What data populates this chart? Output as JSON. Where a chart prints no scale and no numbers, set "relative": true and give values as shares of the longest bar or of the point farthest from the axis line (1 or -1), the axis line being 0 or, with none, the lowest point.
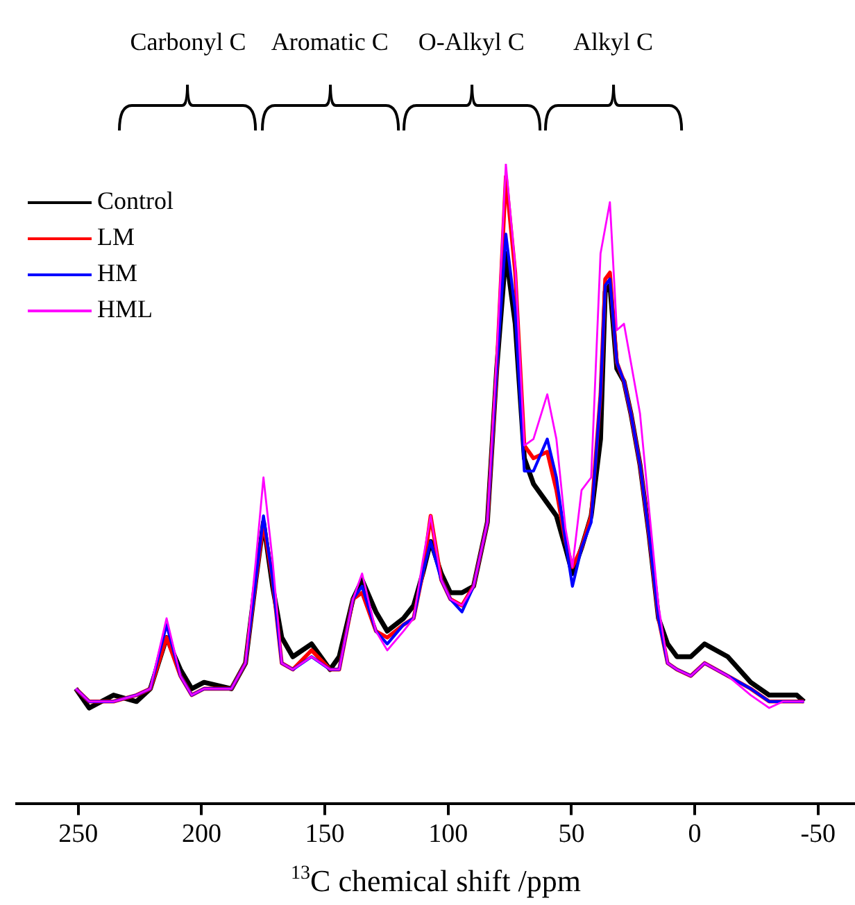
{
  "chart_data": {
    "type": "line",
    "xlabel": "$^{13}$C chemical shift /ppm",
    "relative": true,
    "xlim": [
      275,
      -65
    ],
    "xticks": [
      250,
      200,
      150,
      100,
      50,
      0,
      -50
    ],
    "legend": "top left",
    "marker": "none",
    "line_style": "solid",
    "annotations": [
      "Carbonyl C",
      "Aromatic C",
      "O-Alkyl C",
      "Alkyl C"
    ],
    "x": [
      251,
      245.6,
      235.7,
      226.4,
      220.8,
      214.2,
      208.6,
      204,
      199,
      187.9,
      182.2,
      178,
      174.9,
      171.2,
      167.5,
      163,
      155.4,
      147.9,
      144.2,
      138.6,
      134.9,
      129.3,
      124.7,
      118.1,
      114,
      110.3,
      107.1,
      102.8,
      99.1,
      94.4,
      89.7,
      84.1,
      80.3,
      76.6,
      72.8,
      69.1,
      65.4,
      59.8,
      56.1,
      52.4,
      49.6,
      45.9,
      42,
      38.2,
      36.3,
      34.4,
      31.6,
      28.7,
      25.9,
      22.2,
      18.5,
      14.7,
      11,
      7.2,
      1.6,
      -4,
      -13.4,
      -22.7,
      -30.2,
      -35.8,
      -41.4,
      -44.3
    ],
    "series": [
      {
        "name": "Control",
        "color": "#000000",
        "values": [
          0.18,
          0.15,
          0.17,
          0.16,
          0.18,
          0.26,
          0.21,
          0.18,
          0.19,
          0.18,
          0.22,
          0.35,
          0.44,
          0.34,
          0.26,
          0.23,
          0.25,
          0.21,
          0.23,
          0.32,
          0.35,
          0.3,
          0.27,
          0.29,
          0.31,
          0.36,
          0.41,
          0.36,
          0.33,
          0.33,
          0.34,
          0.44,
          0.68,
          0.86,
          0.75,
          0.54,
          0.5,
          0.47,
          0.45,
          0.4,
          0.36,
          0.4,
          0.45,
          0.57,
          0.8,
          0.81,
          0.68,
          0.66,
          0.61,
          0.53,
          0.42,
          0.29,
          0.25,
          0.23,
          0.23,
          0.25,
          0.23,
          0.19,
          0.17,
          0.17,
          0.17,
          0.16
        ]
      },
      {
        "name": "LM",
        "color": "#ff0000",
        "values": [
          0.18,
          0.16,
          0.16,
          0.17,
          0.18,
          0.26,
          0.2,
          0.17,
          0.18,
          0.18,
          0.22,
          0.35,
          0.44,
          0.35,
          0.22,
          0.21,
          0.24,
          0.21,
          0.21,
          0.32,
          0.33,
          0.27,
          0.26,
          0.28,
          0.29,
          0.36,
          0.45,
          0.35,
          0.32,
          0.31,
          0.34,
          0.44,
          0.68,
          0.98,
          0.83,
          0.56,
          0.54,
          0.55,
          0.49,
          0.41,
          0.37,
          0.4,
          0.45,
          0.64,
          0.82,
          0.83,
          0.69,
          0.66,
          0.61,
          0.53,
          0.42,
          0.29,
          0.22,
          0.21,
          0.2,
          0.22,
          0.2,
          0.18,
          0.16,
          0.16,
          0.16,
          0.16
        ]
      },
      {
        "name": "HM",
        "color": "#0000ff",
        "values": [
          0.18,
          0.16,
          0.16,
          0.17,
          0.18,
          0.28,
          0.2,
          0.17,
          0.18,
          0.18,
          0.22,
          0.35,
          0.45,
          0.35,
          0.22,
          0.21,
          0.23,
          0.21,
          0.21,
          0.32,
          0.34,
          0.27,
          0.25,
          0.28,
          0.29,
          0.36,
          0.41,
          0.35,
          0.32,
          0.3,
          0.34,
          0.44,
          0.68,
          0.89,
          0.77,
          0.52,
          0.52,
          0.57,
          0.51,
          0.41,
          0.34,
          0.4,
          0.44,
          0.64,
          0.81,
          0.82,
          0.69,
          0.66,
          0.61,
          0.53,
          0.42,
          0.29,
          0.22,
          0.21,
          0.2,
          0.22,
          0.2,
          0.18,
          0.16,
          0.16,
          0.16,
          0.16
        ]
      },
      {
        "name": "HML",
        "color": "#ff00ff",
        "values": [
          0.18,
          0.16,
          0.16,
          0.17,
          0.18,
          0.29,
          0.2,
          0.17,
          0.18,
          0.18,
          0.22,
          0.38,
          0.51,
          0.38,
          0.22,
          0.21,
          0.23,
          0.21,
          0.21,
          0.32,
          0.36,
          0.27,
          0.24,
          0.27,
          0.29,
          0.38,
          0.45,
          0.35,
          0.32,
          0.31,
          0.34,
          0.44,
          0.7,
          1.0,
          0.84,
          0.56,
          0.57,
          0.64,
          0.57,
          0.43,
          0.37,
          0.49,
          0.51,
          0.86,
          0.9,
          0.94,
          0.74,
          0.75,
          0.69,
          0.61,
          0.46,
          0.31,
          0.22,
          0.21,
          0.2,
          0.22,
          0.2,
          0.17,
          0.15,
          0.16,
          0.16,
          0.16
        ]
      }
    ]
  }
}
